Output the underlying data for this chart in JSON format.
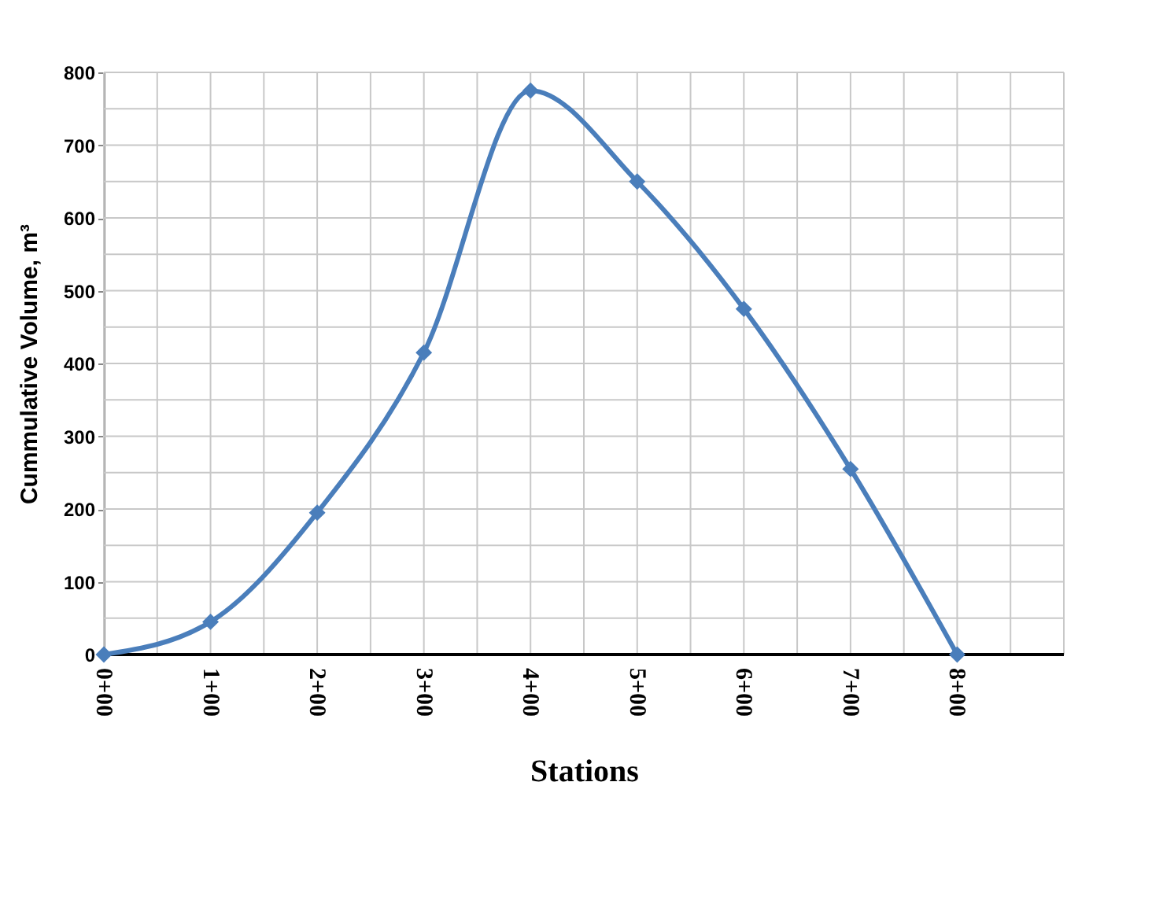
{
  "chart_data": {
    "type": "line",
    "xlabel": "Stations",
    "ylabel": "Cummulative Volume, m³",
    "categories": [
      "0+00",
      "1+00",
      "2+00",
      "3+00",
      "4+00",
      "5+00",
      "6+00",
      "7+00",
      "8+00",
      null
    ],
    "series": [
      {
        "color": "#4a7ebb",
        "values": [
          0,
          45,
          195,
          415,
          775,
          650,
          475,
          255,
          0,
          null
        ]
      }
    ],
    "ylim": [
      0,
      800
    ],
    "yticks": [
      0,
      100,
      200,
      300,
      400,
      500,
      600,
      700,
      800
    ],
    "grid": true,
    "marker": "diamond",
    "line_style": "solid"
  }
}
